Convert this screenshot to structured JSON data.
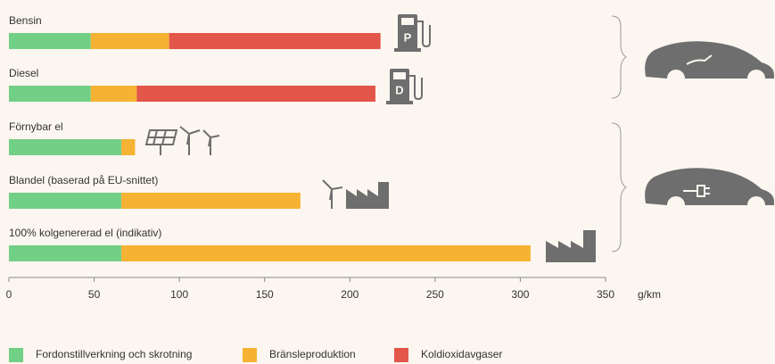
{
  "chart_data": {
    "type": "bar",
    "orientation": "horizontal",
    "stacked": true,
    "categories": [
      "Bensin",
      "Diesel",
      "Förnybar el",
      "Blandel (baserad på EU-snittet)",
      "100% kolgenererad el (indikativ)"
    ],
    "series": [
      {
        "name": "Fordonstillverkning och skrotning",
        "color": "#72cf86",
        "values": [
          48,
          48,
          66,
          66,
          66
        ]
      },
      {
        "name": "Bränsleproduktion",
        "color": "#f6b232",
        "values": [
          46,
          27,
          8,
          105,
          240
        ]
      },
      {
        "name": "Koldioxidavgaser",
        "color": "#e3564a",
        "values": [
          124,
          140,
          null,
          null,
          null
        ]
      }
    ],
    "xlim": [
      0,
      350
    ],
    "xticks": [
      0,
      50,
      100,
      150,
      200,
      250,
      300,
      350
    ],
    "x_label": "g/km",
    "legend": "bottom",
    "pump_letters": [
      "P",
      "D"
    ]
  }
}
